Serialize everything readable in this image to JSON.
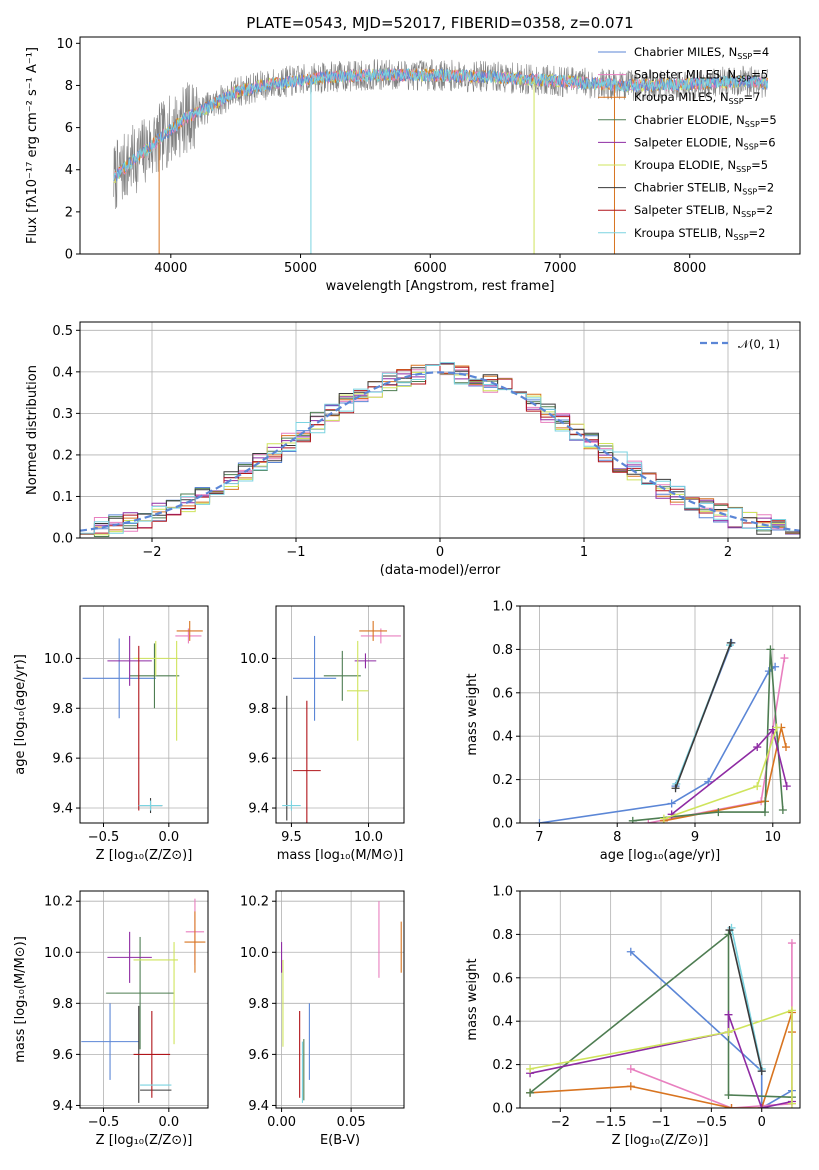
{
  "colors": {
    "chabrier_miles": "#5b86d6",
    "salpeter_miles": "#e87fbf",
    "kroupa_miles": "#d87420",
    "chabrier_elodie": "#4e7d52",
    "salpeter_elodie": "#8e2ba3",
    "kroupa_elodie": "#cfe45c",
    "chabrier_stelib": "#3a3a3a",
    "salpeter_stelib": "#b0141a",
    "kroupa_stelib": "#7bd3e0",
    "observed": "#808080",
    "normal": "#5b86d6"
  },
  "chart_data": [
    {
      "id": "spectrum",
      "type": "line",
      "title": "PLATE=0543, MJD=52017, FIBERID=0358, z=0.071",
      "xlabel": "wavelength [Angstrom, rest frame]",
      "ylabel": "Flux [fλ10⁻¹⁷ erg cm⁻² s⁻¹ A⁻¹]",
      "xlim": [
        3300,
        8850
      ],
      "ylim": [
        0,
        10.3
      ],
      "xticks": [
        4000,
        5000,
        6000,
        7000,
        8000
      ],
      "yticks": [
        0,
        2,
        4,
        6,
        8,
        10
      ],
      "continuum": [
        [
          3560,
          3.6
        ],
        [
          3700,
          4.4
        ],
        [
          3900,
          5.4
        ],
        [
          4100,
          6.4
        ],
        [
          4300,
          7.0
        ],
        [
          4500,
          7.7
        ],
        [
          4800,
          8.1
        ],
        [
          5200,
          8.4
        ],
        [
          5600,
          8.5
        ],
        [
          6000,
          8.5
        ],
        [
          6500,
          8.4
        ],
        [
          7000,
          8.2
        ],
        [
          7500,
          8.0
        ],
        [
          8000,
          8.05
        ],
        [
          8400,
          8.2
        ],
        [
          8600,
          8.1
        ]
      ],
      "legend": [
        {
          "name": "Chabrier MILES, N",
          "sub": "SSP",
          "eq": "=4",
          "color_key": "chabrier_miles"
        },
        {
          "name": "Salpeter MILES, N",
          "sub": "SSP",
          "eq": "=5",
          "color_key": "salpeter_miles"
        },
        {
          "name": "Kroupa MILES, N",
          "sub": "SSP",
          "eq": "=7",
          "color_key": "kroupa_miles"
        },
        {
          "name": "Chabrier ELODIE, N",
          "sub": "SSP",
          "eq": "=5",
          "color_key": "chabrier_elodie"
        },
        {
          "name": "Salpeter ELODIE, N",
          "sub": "SSP",
          "eq": "=6",
          "color_key": "salpeter_elodie"
        },
        {
          "name": "Kroupa ELODIE, N",
          "sub": "SSP",
          "eq": "=5",
          "color_key": "kroupa_elodie"
        },
        {
          "name": "Chabrier STELIB, N",
          "sub": "SSP",
          "eq": "=2",
          "color_key": "chabrier_stelib"
        },
        {
          "name": "Salpeter STELIB, N",
          "sub": "SSP",
          "eq": "=2",
          "color_key": "salpeter_stelib"
        },
        {
          "name": "Kroupa STELIB, N",
          "sub": "SSP",
          "eq": "=2",
          "color_key": "kroupa_stelib"
        }
      ]
    },
    {
      "id": "residuals",
      "type": "histogram",
      "xlabel": "(data-model)/error",
      "ylabel": "Normed distribution",
      "xlim": [
        -2.5,
        2.5
      ],
      "ylim": [
        0,
        0.52
      ],
      "xticks": [
        -2,
        -1,
        0,
        1,
        2
      ],
      "yticks": [
        0.0,
        0.1,
        0.2,
        0.3,
        0.4,
        0.5
      ],
      "legend_label": "𝒩(0, 1)",
      "bin_width": 0.1,
      "bins_start": -2.5
    },
    {
      "id": "age_vs_Z",
      "type": "errorbar",
      "xlabel": "Z [log₁₀(Z/Z⊙)]",
      "ylabel": "age  [log₁₀(age/yr)]",
      "xlim": [
        -0.68,
        0.3
      ],
      "ylim": [
        9.34,
        10.21
      ],
      "xticks": [
        -0.5,
        0.0
      ],
      "yticks": [
        9.4,
        9.6,
        9.8,
        10.0
      ],
      "points": [
        {
          "c": "chabrier_miles",
          "x": -0.38,
          "xe": 0.28,
          "y": 9.92,
          "ye": 0.16
        },
        {
          "c": "salpeter_miles",
          "x": 0.15,
          "xe": 0.1,
          "y": 10.09,
          "ye": 0.03
        },
        {
          "c": "kroupa_miles",
          "x": 0.16,
          "xe": 0.1,
          "y": 10.11,
          "ye": 0.04
        },
        {
          "c": "chabrier_elodie",
          "x": -0.11,
          "xe": 0.19,
          "y": 9.93,
          "ye": 0.13
        },
        {
          "c": "salpeter_elodie",
          "x": -0.3,
          "xe": 0.17,
          "y": 9.99,
          "ye": 0.1
        },
        {
          "c": "kroupa_elodie",
          "x": -0.1,
          "xe": 0.17,
          "y": 10.0,
          "ye": 0.07
        },
        {
          "c": "kroupa_elodie",
          "x": 0.06,
          "xe": 0.0,
          "y": 9.87,
          "ye": 0.2
        },
        {
          "c": "chabrier_stelib",
          "x": -0.14,
          "xe": 0.09,
          "y": 9.41,
          "ye": 0.03
        },
        {
          "c": "salpeter_stelib",
          "x": -0.23,
          "xe": 0.0,
          "y": 9.72,
          "ye": 0.33
        },
        {
          "c": "kroupa_stelib",
          "x": -0.14,
          "xe": 0.09,
          "y": 9.41,
          "ye": 0.02
        }
      ]
    },
    {
      "id": "age_vs_mass",
      "type": "errorbar",
      "xlabel": "mass [log₁₀(M/M⊙)]",
      "ylabel": "",
      "xlim": [
        9.4,
        10.23
      ],
      "ylim": [
        9.34,
        10.21
      ],
      "xticks": [
        9.5,
        10.0
      ],
      "yticks": [
        9.4,
        9.6,
        9.8,
        10.0
      ],
      "points": [
        {
          "c": "chabrier_miles",
          "x": 9.65,
          "xe": 0.14,
          "y": 9.92,
          "ye": 0.17
        },
        {
          "c": "salpeter_miles",
          "x": 10.08,
          "xe": 0.13,
          "y": 10.09,
          "ye": 0.03
        },
        {
          "c": "kroupa_miles",
          "x": 10.03,
          "xe": 0.09,
          "y": 10.11,
          "ye": 0.04
        },
        {
          "c": "chabrier_elodie",
          "x": 9.83,
          "xe": 0.12,
          "y": 9.93,
          "ye": 0.1
        },
        {
          "c": "salpeter_elodie",
          "x": 9.98,
          "xe": 0.07,
          "y": 9.99,
          "ye": 0.03
        },
        {
          "c": "kroupa_elodie",
          "x": 9.93,
          "xe": 0.07,
          "y": 9.87,
          "ye": 0.2
        },
        {
          "c": "chabrier_stelib",
          "x": 9.47,
          "xe": 0.0,
          "y": 9.6,
          "ye": 0.25
        },
        {
          "c": "salpeter_stelib",
          "x": 9.6,
          "xe": 0.09,
          "y": 9.55,
          "ye": 0.28
        },
        {
          "c": "kroupa_stelib",
          "x": 9.5,
          "xe": 0.06,
          "y": 9.41,
          "ye": 0.02
        }
      ]
    },
    {
      "id": "mw_vs_age",
      "type": "line",
      "xlabel": "age  [log₁₀(age/yr)]",
      "ylabel": "mass weight",
      "xlim": [
        6.75,
        10.35
      ],
      "ylim": [
        0,
        1.0
      ],
      "xticks": [
        7,
        8,
        9,
        10
      ],
      "yticks": [
        0.0,
        0.2,
        0.4,
        0.6,
        0.8,
        1.0
      ],
      "series": [
        {
          "c": "chabrier_miles",
          "pts": [
            [
              7.0,
              0.0
            ],
            [
              8.7,
              0.09
            ],
            [
              9.17,
              0.19
            ],
            [
              9.95,
              0.7
            ],
            [
              10.03,
              0.72
            ]
          ]
        },
        {
          "c": "chabrier_miles",
          "pts": [
            [
              8.75,
              0.17
            ],
            [
              9.47,
              0.83
            ]
          ]
        },
        {
          "c": "salpeter_miles",
          "pts": [
            [
              8.4,
              0.0
            ],
            [
              9.85,
              0.1
            ],
            [
              10.15,
              0.76
            ]
          ]
        },
        {
          "c": "kroupa_miles",
          "pts": [
            [
              8.6,
              0.01
            ],
            [
              9.9,
              0.1
            ],
            [
              10.11,
              0.44
            ],
            [
              10.17,
              0.35
            ]
          ]
        },
        {
          "c": "chabrier_elodie",
          "pts": [
            [
              8.2,
              0.01
            ],
            [
              9.3,
              0.05
            ],
            [
              9.9,
              0.05
            ],
            [
              9.97,
              0.8
            ],
            [
              10.13,
              0.06
            ]
          ]
        },
        {
          "c": "salpeter_elodie",
          "pts": [
            [
              8.7,
              0.04
            ],
            [
              9.8,
              0.35
            ],
            [
              10.0,
              0.43
            ],
            [
              10.18,
              0.17
            ]
          ]
        },
        {
          "c": "kroupa_elodie",
          "pts": [
            [
              8.6,
              0.02
            ],
            [
              9.8,
              0.17
            ],
            [
              10.05,
              0.44
            ]
          ]
        },
        {
          "c": "kroupa_stelib",
          "pts": [
            [
              8.76,
              0.18
            ],
            [
              9.45,
              0.82
            ]
          ]
        },
        {
          "c": "chabrier_stelib",
          "pts": [
            [
              8.75,
              0.16
            ],
            [
              9.46,
              0.83
            ]
          ]
        }
      ]
    },
    {
      "id": "mass_vs_Z",
      "type": "errorbar",
      "xlabel": "Z [log₁₀(Z/Z⊙)]",
      "ylabel": "mass [log₁₀(M/M⊙)]",
      "xlim": [
        -0.68,
        0.3
      ],
      "ylim": [
        9.39,
        10.24
      ],
      "xticks": [
        -0.5,
        0.0
      ],
      "yticks": [
        9.4,
        9.6,
        9.8,
        10.0,
        10.2
      ],
      "points": [
        {
          "c": "chabrier_miles",
          "x": -0.45,
          "xe": 0.22,
          "y": 9.65,
          "ye": 0.15
        },
        {
          "c": "salpeter_miles",
          "x": 0.2,
          "xe": 0.07,
          "y": 10.08,
          "ye": 0.13
        },
        {
          "c": "kroupa_miles",
          "x": 0.2,
          "xe": 0.08,
          "y": 10.04,
          "ye": 0.12
        },
        {
          "c": "chabrier_elodie",
          "x": -0.22,
          "xe": 0.26,
          "y": 9.84,
          "ye": 0.22
        },
        {
          "c": "salpeter_elodie",
          "x": -0.3,
          "xe": 0.17,
          "y": 9.98,
          "ye": 0.1
        },
        {
          "c": "kroupa_elodie",
          "x": -0.1,
          "xe": 0.17,
          "y": 9.97,
          "ye": 0.0
        },
        {
          "c": "kroupa_elodie",
          "x": 0.04,
          "xe": 0.0,
          "y": 9.84,
          "ye": 0.2
        },
        {
          "c": "chabrier_stelib",
          "x": -0.1,
          "xe": 0.12,
          "y": 9.46,
          "ye": 0.0
        },
        {
          "c": "chabrier_stelib",
          "x": -0.23,
          "xe": 0.0,
          "y": 9.6,
          "ye": 0.19
        },
        {
          "c": "salpeter_stelib",
          "x": -0.13,
          "xe": 0.14,
          "y": 9.6,
          "ye": 0.17
        },
        {
          "c": "kroupa_stelib",
          "x": -0.1,
          "xe": 0.12,
          "y": 9.48,
          "ye": 0.0
        }
      ]
    },
    {
      "id": "mass_vs_ebv",
      "type": "errorbar",
      "xlabel": "E(B-V)",
      "ylabel": "",
      "xlim": [
        -0.004,
        0.088
      ],
      "ylim": [
        9.39,
        10.24
      ],
      "xticks": [
        0.0,
        0.05
      ],
      "xtick_labels": [
        "0.00",
        "0.05"
      ],
      "yticks": [
        9.4,
        9.6,
        9.8,
        10.0,
        10.2
      ],
      "points": [
        {
          "c": "chabrier_miles",
          "x": 0.02,
          "xe": 0.0,
          "y": 9.65,
          "ye": 0.15
        },
        {
          "c": "salpeter_miles",
          "x": 0.07,
          "xe": 0.0,
          "y": 10.05,
          "ye": 0.15
        },
        {
          "c": "kroupa_miles",
          "x": 0.086,
          "xe": 0.0,
          "y": 10.02,
          "ye": 0.1
        },
        {
          "c": "chabrier_elodie",
          "x": 0.016,
          "xe": 0.0,
          "y": 9.54,
          "ye": 0.12
        },
        {
          "c": "salpeter_elodie",
          "x": 0.0,
          "xe": 0.0,
          "y": 9.98,
          "ye": 0.06
        },
        {
          "c": "kroupa_elodie",
          "x": 0.001,
          "xe": 0.0,
          "y": 9.8,
          "ye": 0.17
        },
        {
          "c": "salpeter_stelib",
          "x": 0.013,
          "xe": 0.0,
          "y": 9.6,
          "ye": 0.17
        },
        {
          "c": "kroupa_stelib",
          "x": 0.015,
          "xe": 0.0,
          "y": 9.53,
          "ye": 0.12
        }
      ]
    },
    {
      "id": "mw_vs_Z",
      "type": "line",
      "xlabel": "Z [log₁₀(Z/Z⊙)]",
      "ylabel": "mass weight",
      "xlim": [
        -2.4,
        0.38
      ],
      "ylim": [
        0,
        1.0
      ],
      "xticks": [
        -2.0,
        -1.5,
        -1.0,
        -0.5,
        0.0
      ],
      "yticks": [
        0.0,
        0.2,
        0.4,
        0.6,
        0.8,
        1.0
      ],
      "series": [
        {
          "c": "chabrier_miles",
          "pts": [
            [
              -1.3,
              0.72
            ],
            [
              0.0,
              0.17
            ],
            [
              0.0,
              0.0
            ],
            [
              0.3,
              0.08
            ]
          ]
        },
        {
          "c": "salpeter_miles",
          "pts": [
            [
              -1.3,
              0.18
            ],
            [
              -0.3,
              0.0
            ],
            [
              0.3,
              0.02
            ],
            [
              0.3,
              0.76
            ]
          ]
        },
        {
          "c": "kroupa_miles",
          "pts": [
            [
              -2.3,
              0.07
            ],
            [
              -1.3,
              0.1
            ],
            [
              -0.3,
              0.0
            ],
            [
              0.0,
              0.0
            ],
            [
              0.3,
              0.44
            ],
            [
              0.3,
              0.35
            ]
          ]
        },
        {
          "c": "chabrier_elodie",
          "pts": [
            [
              -2.3,
              0.07
            ],
            [
              -0.33,
              0.8
            ],
            [
              -0.33,
              0.06
            ],
            [
              0.3,
              0.05
            ]
          ]
        },
        {
          "c": "salpeter_elodie",
          "pts": [
            [
              -2.3,
              0.16
            ],
            [
              -0.33,
              0.35
            ],
            [
              -0.33,
              0.43
            ],
            [
              0.0,
              0.0
            ],
            [
              0.3,
              0.03
            ]
          ]
        },
        {
          "c": "kroupa_elodie",
          "pts": [
            [
              -2.3,
              0.18
            ],
            [
              -0.33,
              0.35
            ],
            [
              0.3,
              0.45
            ],
            [
              0.3,
              0.02
            ]
          ]
        },
        {
          "c": "kroupa_stelib",
          "pts": [
            [
              -0.3,
              0.83
            ],
            [
              0.0,
              0.18
            ]
          ]
        },
        {
          "c": "chabrier_stelib",
          "pts": [
            [
              -0.32,
              0.82
            ],
            [
              0.0,
              0.17
            ]
          ]
        }
      ]
    }
  ]
}
